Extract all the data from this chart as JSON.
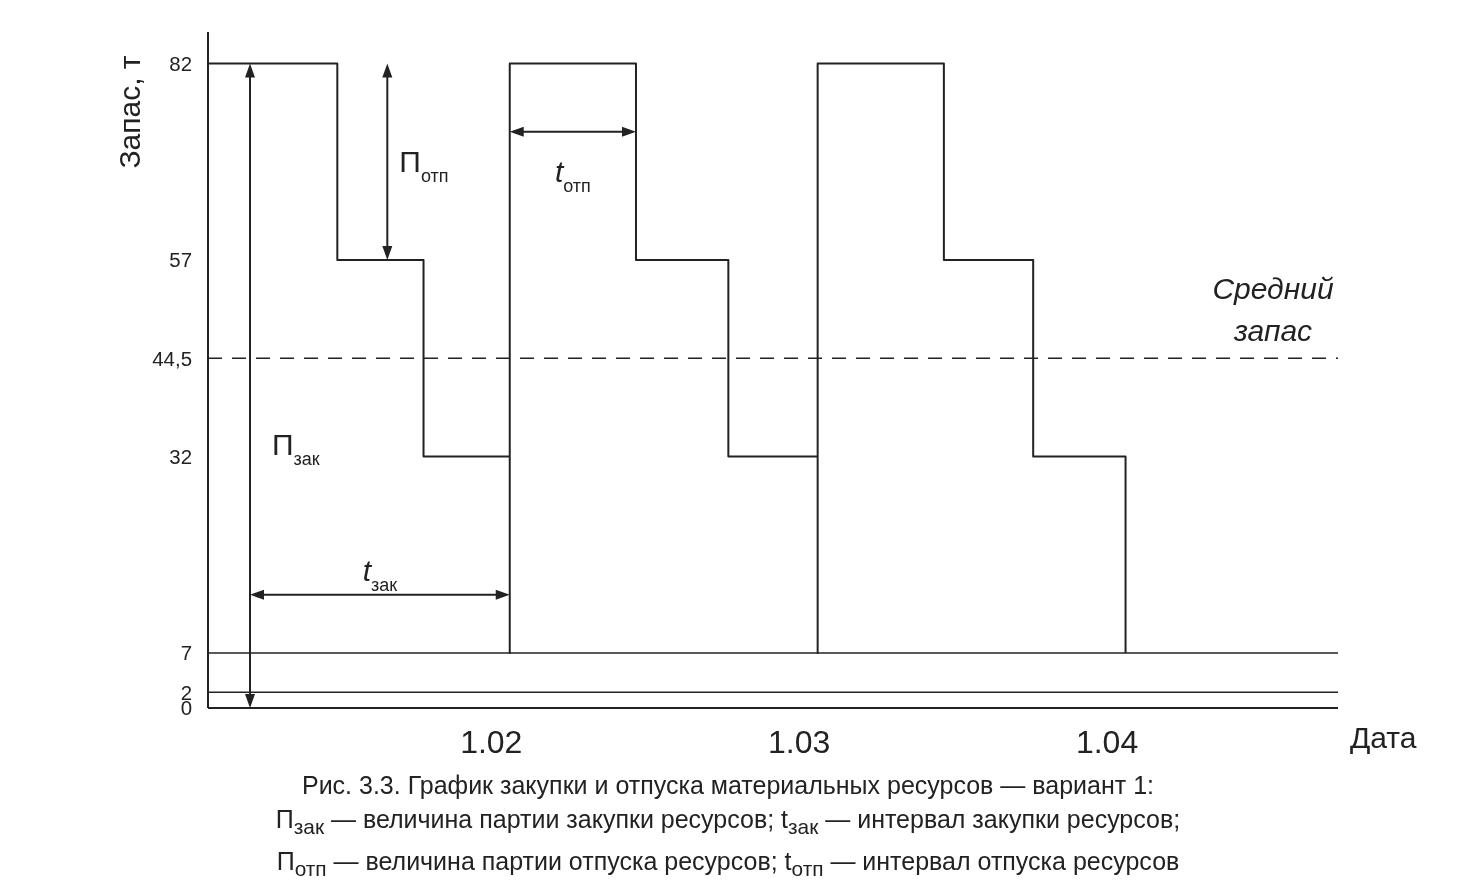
{
  "chart_data": {
    "type": "step",
    "xlabel": "Дата",
    "ylabel": "Запас, т",
    "x": [
      1.0108,
      1.015,
      1.0178,
      1.0206,
      1.0206,
      1.0247,
      1.0277,
      1.0306,
      1.0306,
      1.0347,
      1.0376,
      1.0406
    ],
    "series": [
      {
        "color": "#222222",
        "values": [
          82,
          57,
          32,
          7,
          82,
          57,
          32,
          7,
          82,
          57,
          32,
          7
        ]
      }
    ],
    "xlim": [
      1.0108,
      1.0475
    ],
    "xticks": [
      1.02,
      1.03,
      1.04
    ],
    "ylim": [
      0,
      86
    ],
    "yticks": [
      0,
      2,
      7,
      32,
      {
        "value": 44.5,
        "label": "44,5"
      },
      57,
      82
    ],
    "ref_lines": [
      {
        "axis": "y",
        "value": 44.5,
        "label": "Средний запас",
        "line_style": "dashed"
      },
      {
        "axis": "y",
        "value": 7
      },
      {
        "axis": "y",
        "value": 2
      }
    ],
    "annotations": [
      "П$_{зак}$",
      "t$_{зак}$",
      "П$_{отп}$",
      "t$_{отп}$",
      "Рис. 3.3. График закупки и отпуска материальных ресурсов — вариант 1:\nП$_{зак}$ — величина партии закупки ресурсов; t$_{зак}$ — интервал закупки ресурсов;\nП$_{отп}$ — величина партии отпуска ресурсов; t$_{отп}$ — интервал отпуска ресурсов"
    ],
    "marker": "none",
    "line_style": "solid"
  }
}
